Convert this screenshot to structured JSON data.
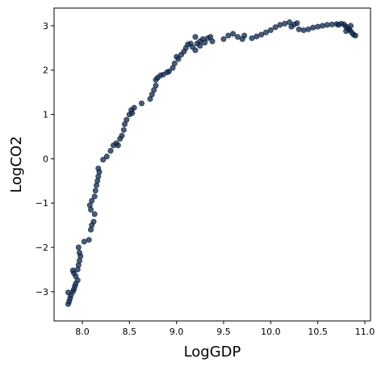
{
  "chart_data": {
    "type": "scatter",
    "title": "",
    "xlabel": "LogGDP",
    "ylabel": "LogCO2",
    "xlim": [
      7.7,
      11.06
    ],
    "ylim": [
      -3.66,
      3.4
    ],
    "xticks": [
      8.0,
      8.5,
      9.0,
      9.5,
      10.0,
      10.5,
      11.0
    ],
    "xtick_labels": [
      "8.0",
      "8.5",
      "9.0",
      "9.5",
      "10.0",
      "10.5",
      "11.0"
    ],
    "yticks": [
      -3,
      -2,
      -1,
      0,
      1,
      2,
      3
    ],
    "ytick_labels": [
      "−3",
      "−2",
      "−1",
      "0",
      "1",
      "2",
      "3"
    ],
    "grid": false,
    "marker_color": "#0d2445",
    "marker_alpha": 0.75,
    "series": [
      {
        "points": [
          [
            7.85,
            -3.28
          ],
          [
            7.86,
            -3.22
          ],
          [
            7.87,
            -3.15
          ],
          [
            7.88,
            -3.08
          ],
          [
            7.85,
            -3.02
          ],
          [
            7.9,
            -3.0
          ],
          [
            7.91,
            -2.95
          ],
          [
            7.92,
            -2.88
          ],
          [
            7.93,
            -2.82
          ],
          [
            7.95,
            -2.74
          ],
          [
            7.93,
            -2.65
          ],
          [
            7.91,
            -2.58
          ],
          [
            7.9,
            -2.52
          ],
          [
            7.95,
            -2.5
          ],
          [
            7.96,
            -2.4
          ],
          [
            7.97,
            -2.3
          ],
          [
            7.98,
            -2.2
          ],
          [
            7.97,
            -2.12
          ],
          [
            7.96,
            -2.0
          ],
          [
            8.02,
            -1.87
          ],
          [
            8.07,
            -1.83
          ],
          [
            8.09,
            -1.6
          ],
          [
            8.1,
            -1.5
          ],
          [
            8.12,
            -1.42
          ],
          [
            8.13,
            -1.25
          ],
          [
            8.09,
            -1.15
          ],
          [
            8.08,
            -1.05
          ],
          [
            8.1,
            -0.95
          ],
          [
            8.13,
            -0.85
          ],
          [
            8.14,
            -0.72
          ],
          [
            8.15,
            -0.6
          ],
          [
            8.16,
            -0.5
          ],
          [
            8.17,
            -0.4
          ],
          [
            8.18,
            -0.3
          ],
          [
            8.17,
            -0.22
          ],
          [
            8.22,
            -0.02
          ],
          [
            8.26,
            0.05
          ],
          [
            8.3,
            0.18
          ],
          [
            8.33,
            0.3
          ],
          [
            8.36,
            0.35
          ],
          [
            8.38,
            0.3
          ],
          [
            8.4,
            0.45
          ],
          [
            8.42,
            0.52
          ],
          [
            8.44,
            0.65
          ],
          [
            8.45,
            0.78
          ],
          [
            8.47,
            0.88
          ],
          [
            8.5,
            1.0
          ],
          [
            8.52,
            1.1
          ],
          [
            8.55,
            1.15
          ],
          [
            8.53,
            1.03
          ],
          [
            8.63,
            1.25
          ],
          [
            8.72,
            1.35
          ],
          [
            8.74,
            1.45
          ],
          [
            8.76,
            1.55
          ],
          [
            8.78,
            1.65
          ],
          [
            8.78,
            1.78
          ],
          [
            8.8,
            1.83
          ],
          [
            8.83,
            1.88
          ],
          [
            8.86,
            1.9
          ],
          [
            8.9,
            1.95
          ],
          [
            8.92,
            1.97
          ],
          [
            8.96,
            2.05
          ],
          [
            8.98,
            2.15
          ],
          [
            9.0,
            2.3
          ],
          [
            9.02,
            2.25
          ],
          [
            9.05,
            2.35
          ],
          [
            9.08,
            2.42
          ],
          [
            9.1,
            2.5
          ],
          [
            9.12,
            2.58
          ],
          [
            9.15,
            2.6
          ],
          [
            9.17,
            2.52
          ],
          [
            9.2,
            2.45
          ],
          [
            9.22,
            2.6
          ],
          [
            9.25,
            2.65
          ],
          [
            9.28,
            2.7
          ],
          [
            9.3,
            2.62
          ],
          [
            9.33,
            2.72
          ],
          [
            9.36,
            2.75
          ],
          [
            9.38,
            2.65
          ],
          [
            9.2,
            2.75
          ],
          [
            9.25,
            2.55
          ],
          [
            9.5,
            2.7
          ],
          [
            9.55,
            2.78
          ],
          [
            9.6,
            2.82
          ],
          [
            9.65,
            2.75
          ],
          [
            9.7,
            2.7
          ],
          [
            9.72,
            2.78
          ],
          [
            9.8,
            2.72
          ],
          [
            9.85,
            2.76
          ],
          [
            9.9,
            2.8
          ],
          [
            9.95,
            2.85
          ],
          [
            10.0,
            2.9
          ],
          [
            10.05,
            2.97
          ],
          [
            10.1,
            3.02
          ],
          [
            10.15,
            3.05
          ],
          [
            10.2,
            3.08
          ],
          [
            10.22,
            2.98
          ],
          [
            10.25,
            3.03
          ],
          [
            10.28,
            3.06
          ],
          [
            10.3,
            2.92
          ],
          [
            10.35,
            2.9
          ],
          [
            10.4,
            2.92
          ],
          [
            10.45,
            2.96
          ],
          [
            10.5,
            2.98
          ],
          [
            10.55,
            3.0
          ],
          [
            10.6,
            3.02
          ],
          [
            10.65,
            3.03
          ],
          [
            10.7,
            3.04
          ],
          [
            10.72,
            3.02
          ],
          [
            10.75,
            3.05
          ],
          [
            10.78,
            3.03
          ],
          [
            10.8,
            2.98
          ],
          [
            10.82,
            2.95
          ],
          [
            10.84,
            2.9
          ],
          [
            10.86,
            2.85
          ],
          [
            10.88,
            2.8
          ],
          [
            10.9,
            2.78
          ],
          [
            10.8,
            2.88
          ],
          [
            10.85,
            3.0
          ],
          [
            10.83,
            2.92
          ]
        ]
      }
    ]
  }
}
